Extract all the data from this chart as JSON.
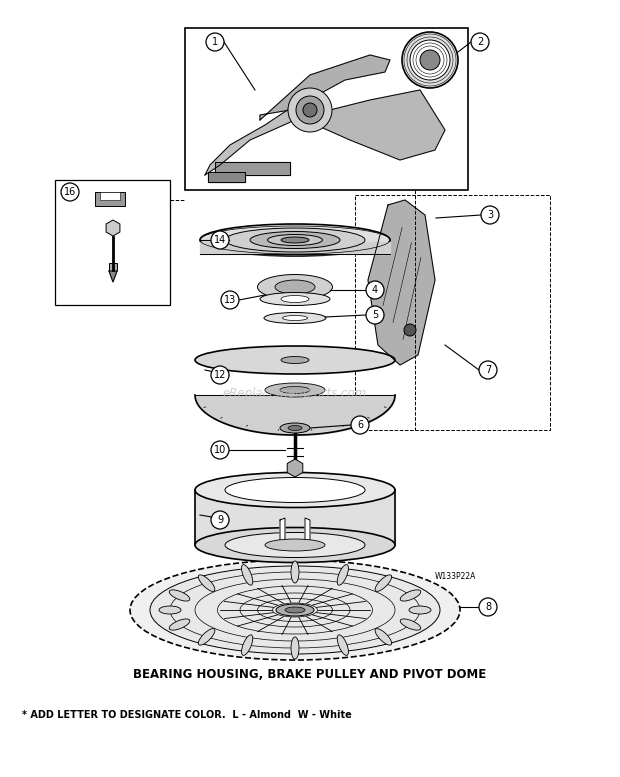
{
  "title": "BEARING HOUSING, BRAKE PULLEY AND PIVOT DOME",
  "subtitle": "* ADD LETTER TO DESIGNATE COLOR.  L - Almond  W - White",
  "bg_color": "#ffffff",
  "text_color": "#000000",
  "watermark": "eReplacementParts.com",
  "diagram_code": "W133P22A",
  "lw_thin": 0.7,
  "lw_med": 1.2,
  "lw_thick": 1.8
}
